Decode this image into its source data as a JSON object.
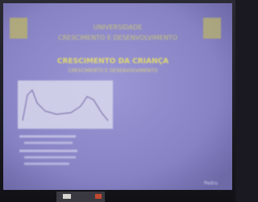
{
  "slide": {
    "header": [
      "UNIVERSIDADE",
      "CRESCIMENTO E DESENVOLVIMENTO"
    ],
    "title": "CRESCIMENTO DA CRIANÇA",
    "subtitle": "CRESCIMENTO E DESENVOLVIMENTO",
    "author": "Pedro"
  }
}
